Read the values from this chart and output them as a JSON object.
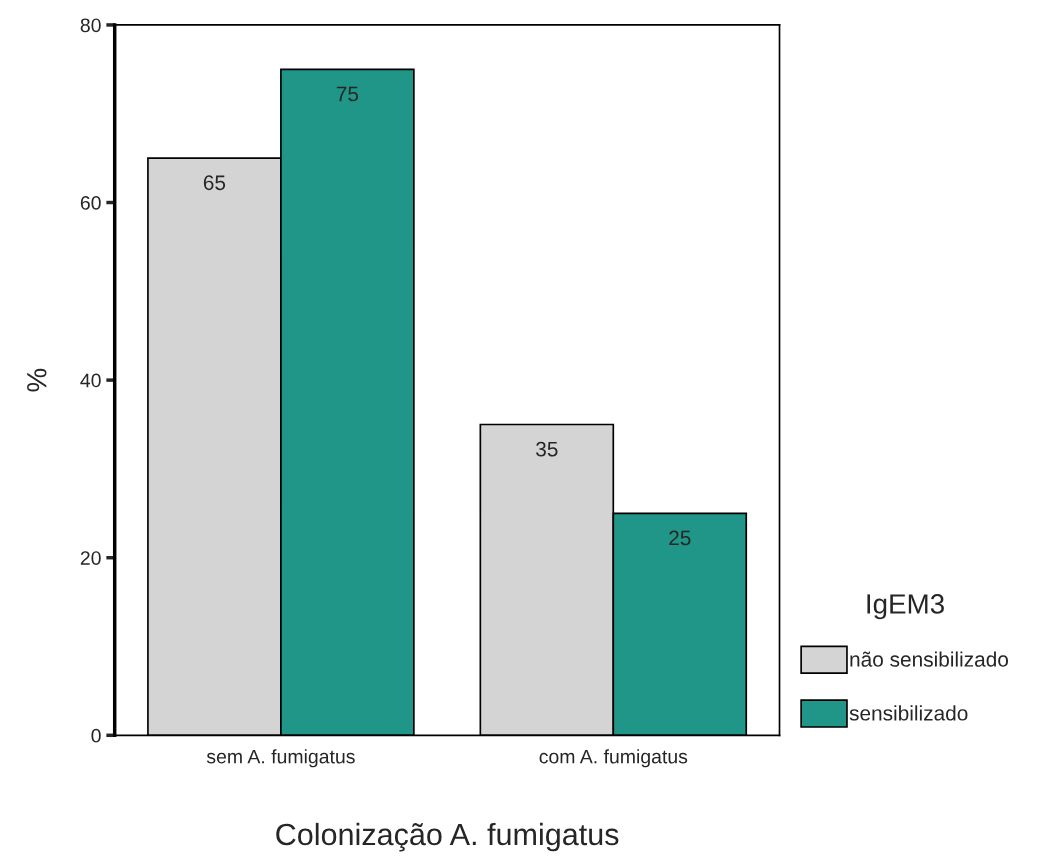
{
  "chart_data": {
    "type": "bar",
    "xlabel": "Colonização A. fumigatus",
    "ylabel": "%",
    "legend_title": "IgEM3",
    "categories": [
      "sem A. fumigatus",
      "com A. fumigatus"
    ],
    "series": [
      {
        "name": "não sensibilizado",
        "color": "#d4d4d4",
        "values": [
          65,
          35
        ]
      },
      {
        "name": "sensibilizado",
        "color": "#1f9688",
        "values": [
          75,
          25
        ]
      }
    ],
    "ylim": [
      0,
      80
    ],
    "yticks": [
      0,
      20,
      40,
      60,
      80
    ],
    "data_labels": true,
    "legend": "right",
    "grid": false
  }
}
